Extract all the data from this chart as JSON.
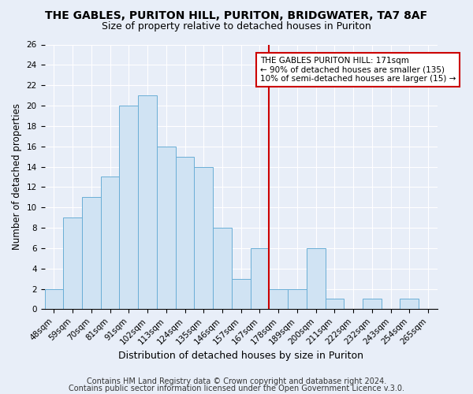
{
  "title1": "THE GABLES, PURITON HILL, PURITON, BRIDGWATER, TA7 8AF",
  "title2": "Size of property relative to detached houses in Puriton",
  "xlabel": "Distribution of detached houses by size in Puriton",
  "ylabel": "Number of detached properties",
  "categories": [
    "48sqm",
    "59sqm",
    "70sqm",
    "81sqm",
    "91sqm",
    "102sqm",
    "113sqm",
    "124sqm",
    "135sqm",
    "146sqm",
    "157sqm",
    "167sqm",
    "178sqm",
    "189sqm",
    "200sqm",
    "211sqm",
    "222sqm",
    "232sqm",
    "243sqm",
    "254sqm",
    "265sqm"
  ],
  "values": [
    2,
    9,
    11,
    13,
    20,
    21,
    16,
    15,
    14,
    8,
    3,
    6,
    2,
    2,
    6,
    1,
    0,
    1,
    0,
    1,
    0
  ],
  "bar_color": "#d0e3f3",
  "bar_edge_color": "#6aaed6",
  "vline_index": 11.5,
  "vline_color": "#cc0000",
  "annotation_text": "THE GABLES PURITON HILL: 171sqm\n← 90% of detached houses are smaller (135)\n10% of semi-detached houses are larger (15) →",
  "annotation_box_color": "white",
  "annotation_box_edge_color": "#cc0000",
  "ylim": [
    0,
    26
  ],
  "yticks": [
    0,
    2,
    4,
    6,
    8,
    10,
    12,
    14,
    16,
    18,
    20,
    22,
    24,
    26
  ],
  "footnote1": "Contains HM Land Registry data © Crown copyright and database right 2024.",
  "footnote2": "Contains public sector information licensed under the Open Government Licence v.3.0.",
  "bg_color": "#e8eef8",
  "plot_bg_color": "#e8eef8",
  "title1_fontsize": 10,
  "title2_fontsize": 9,
  "xlabel_fontsize": 9,
  "ylabel_fontsize": 8.5,
  "tick_fontsize": 7.5,
  "footnote_fontsize": 7,
  "grid_color": "#ffffff"
}
